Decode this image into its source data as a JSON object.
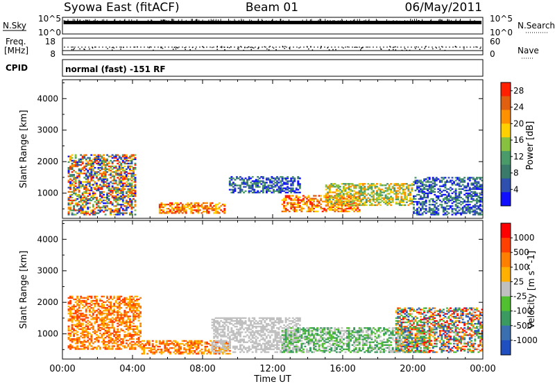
{
  "header": {
    "left": "Syowa East (fitACF)",
    "center": "Beam 01",
    "right": "06/May/2011"
  },
  "strip_panels": {
    "nsky_label": "N.Sky",
    "nsearch_label": "N.Search",
    "nsky_ticks": [
      "10^5",
      "10^0"
    ],
    "nsearch_ticks": [
      "10^5",
      "10^0"
    ],
    "freq_label_line1": "Freq.",
    "freq_label_line2": "[MHz]",
    "freq_ticks": [
      "18",
      "8"
    ],
    "nave_label": "Nave",
    "nave_ticks": [
      "60",
      "0"
    ],
    "cpid_label": "CPID",
    "cpid_text": "normal (fast) -151 RF"
  },
  "colors": {
    "power_scale": [
      "#1010ff",
      "#3050b0",
      "#3a7a6a",
      "#4a9a6a",
      "#88c040",
      "#ffd000",
      "#ff9000",
      "#e06010",
      "#ff2000"
    ],
    "velocity_scale": [
      "#2050c0",
      "#3a70b0",
      "#3a9a60",
      "#50c030",
      "#c0c0c0",
      "#ffb000",
      "#ff8000",
      "#ff4000",
      "#ff0000"
    ]
  },
  "chart_data": [
    {
      "type": "heatmap",
      "name": "power",
      "ylabel": "Slant Range [km]",
      "xlabel": "",
      "y_ticks": [
        1000,
        2000,
        3000,
        4000
      ],
      "ylim": [
        200,
        4600
      ],
      "x_ticks": [
        "00:00",
        "04:00",
        "08:00",
        "12:00",
        "16:00",
        "20:00",
        "00:00"
      ],
      "xlim_hours": [
        0,
        24
      ],
      "colorbar": {
        "label": "Power [dB]",
        "ticks": [
          4,
          8,
          12,
          16,
          20,
          24,
          28
        ],
        "range": [
          0,
          30
        ]
      },
      "data_extent_km": [
        200,
        2300
      ],
      "features": [
        {
          "start_h": 0.3,
          "end_h": 4.2,
          "range_km": [
            300,
            2200
          ],
          "level": "mixed"
        },
        {
          "start_h": 5.5,
          "end_h": 9.2,
          "range_km": [
            350,
            700
          ],
          "level": "high"
        },
        {
          "start_h": 9.5,
          "end_h": 13.5,
          "range_km": [
            1000,
            1500
          ],
          "level": "low"
        },
        {
          "start_h": 12.5,
          "end_h": 17.0,
          "range_km": [
            400,
            900
          ],
          "level": "high"
        },
        {
          "start_h": 15.0,
          "end_h": 20.0,
          "range_km": [
            600,
            1300
          ],
          "level": "medium"
        },
        {
          "start_h": 20.0,
          "end_h": 24.0,
          "range_km": [
            300,
            1500
          ],
          "level": "low"
        }
      ]
    },
    {
      "type": "heatmap",
      "name": "velocity",
      "ylabel": "Slant Range [km]",
      "xlabel": "Time UT",
      "y_ticks": [
        1000,
        2000,
        3000,
        4000
      ],
      "ylim": [
        200,
        4600
      ],
      "x_ticks": [
        "00:00",
        "04:00",
        "08:00",
        "12:00",
        "16:00",
        "20:00",
        "00:00"
      ],
      "xlim_hours": [
        0,
        24
      ],
      "colorbar": {
        "label": "Velocity [m s^-1]",
        "ticks": [
          "1000",
          "500",
          "100",
          "25",
          "-25",
          "-100",
          "-500",
          "-1000"
        ]
      },
      "data_extent_km": [
        200,
        2300
      ],
      "features": [
        {
          "start_h": 0.3,
          "end_h": 4.5,
          "range_km": [
            500,
            2200
          ],
          "level": "negative"
        },
        {
          "start_h": 4.5,
          "end_h": 9.5,
          "range_km": [
            350,
            800
          ],
          "level": "negative"
        },
        {
          "start_h": 8.5,
          "end_h": 13.5,
          "range_km": [
            400,
            1500
          ],
          "level": "ground"
        },
        {
          "start_h": 12.5,
          "end_h": 21.0,
          "range_km": [
            400,
            1200
          ],
          "level": "positive"
        },
        {
          "start_h": 19.0,
          "end_h": 24.0,
          "range_km": [
            400,
            1800
          ],
          "level": "mixed"
        }
      ]
    }
  ]
}
